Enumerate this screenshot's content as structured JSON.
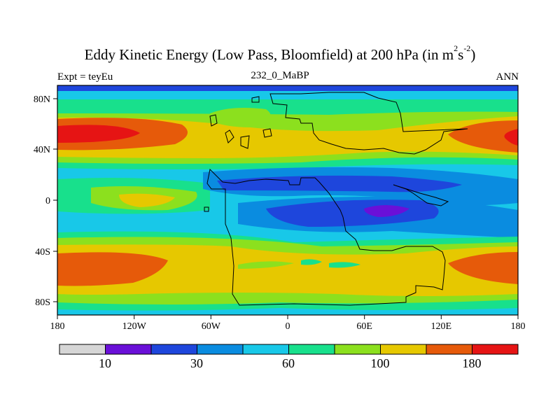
{
  "title": {
    "main": "Eddy Kinetic Energy (Low Pass, Bloomfield) at 200 hPa (in m",
    "sup1": "2",
    "mid": "s",
    "sup2": "-2",
    "close": ")"
  },
  "left_label": "Expt = teyEu",
  "center_label": "232_0_MaBP",
  "right_label": "ANN",
  "map": {
    "x_ticks": [
      "180",
      "120W",
      "60W",
      "0",
      "60E",
      "120E",
      "180"
    ],
    "y_ticks": [
      "80N",
      "40N",
      "0",
      "40S",
      "80S"
    ]
  },
  "colorbar": {
    "colors": [
      "#d6d6d6",
      "#6a10d8",
      "#1e46dc",
      "#0a8ce0",
      "#18c8e8",
      "#18e08c",
      "#8ce01e",
      "#e6c800",
      "#e65a0a",
      "#e61414"
    ],
    "labels": [
      "10",
      "30",
      "60",
      "100",
      "180"
    ]
  }
}
